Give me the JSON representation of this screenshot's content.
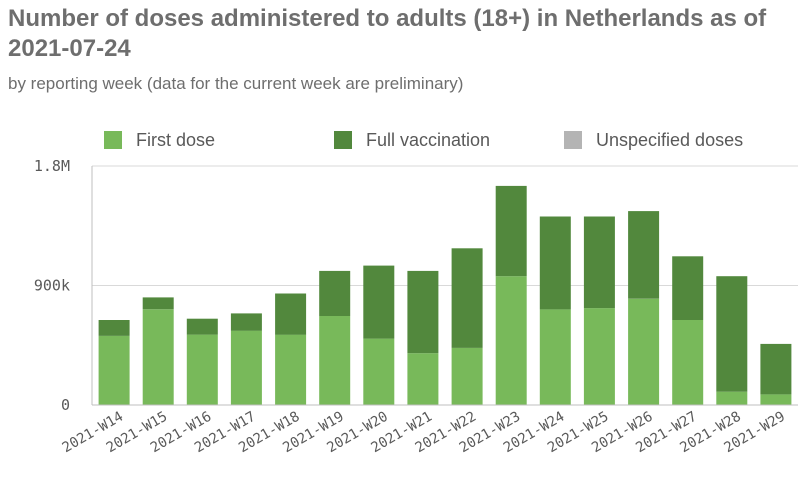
{
  "chart_data": {
    "type": "bar",
    "stacked": true,
    "title": "Number of doses administered to adults (18+) in Netherlands as of 2021-07-24",
    "subtitle": "by reporting week (data for the current week are preliminary)",
    "categories": [
      "2021-W14",
      "2021-W15",
      "2021-W16",
      "2021-W17",
      "2021-W18",
      "2021-W19",
      "2021-W20",
      "2021-W21",
      "2021-W22",
      "2021-W23",
      "2021-W24",
      "2021-W25",
      "2021-W26",
      "2021-W27",
      "2021-W28",
      "2021-W29"
    ],
    "series": [
      {
        "name": "First dose",
        "color": "#78b95a",
        "values": [
          520000,
          720000,
          530000,
          560000,
          530000,
          670000,
          500000,
          390000,
          430000,
          970000,
          720000,
          730000,
          800000,
          640000,
          100000,
          80000
        ]
      },
      {
        "name": "Full vaccination",
        "color": "#52883d",
        "values": [
          120000,
          90000,
          120000,
          130000,
          310000,
          340000,
          550000,
          620000,
          750000,
          680000,
          700000,
          690000,
          660000,
          480000,
          870000,
          380000
        ]
      },
      {
        "name": "Unspecified doses",
        "color": "#b4b4b4",
        "values": [
          0,
          0,
          0,
          0,
          0,
          0,
          0,
          0,
          0,
          0,
          0,
          0,
          0,
          0,
          0,
          0
        ]
      }
    ],
    "ylim": [
      0,
      1800000
    ],
    "yticks": [
      {
        "value": 0,
        "label": "0"
      },
      {
        "value": 900000,
        "label": "900k"
      },
      {
        "value": 1800000,
        "label": "1.8M"
      }
    ],
    "legend_position": "top",
    "grid": true
  }
}
